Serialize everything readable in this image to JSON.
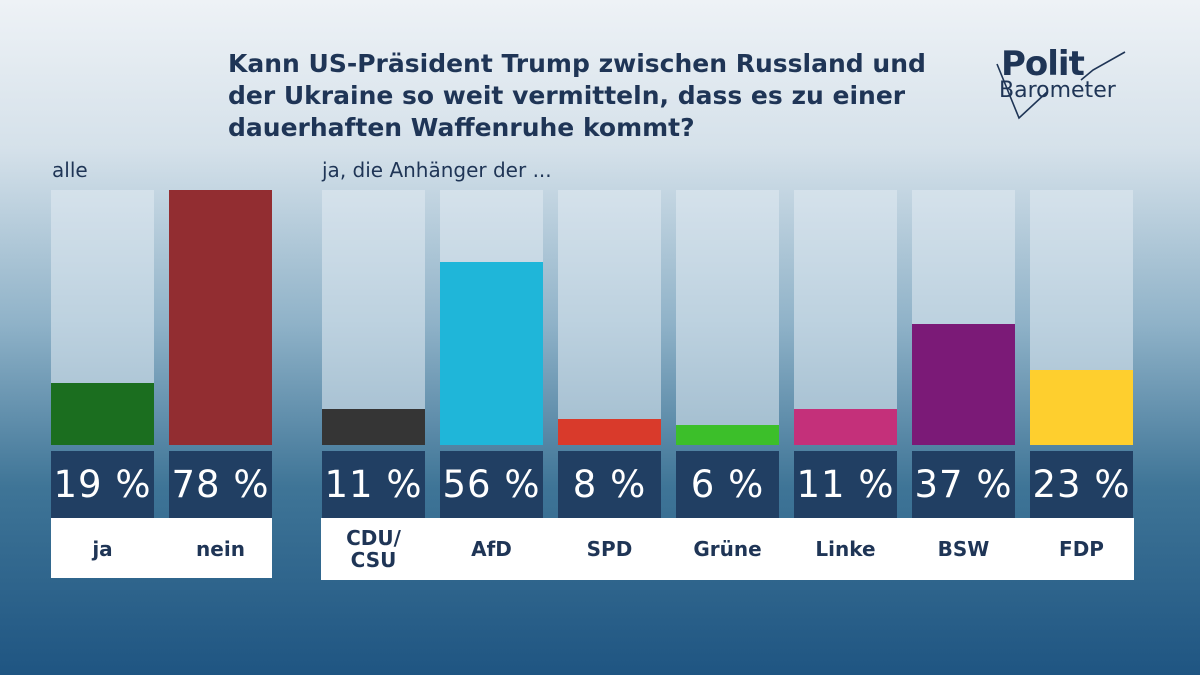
{
  "chart_data": {
    "type": "bar",
    "title": "Kann US-Präsident Trump zwischen Russland und der Ukraine so weit vermitteln, dass es zu einer dauerhaften Waffenruhe kommt?",
    "ylim": [
      0,
      78
    ],
    "groups": [
      {
        "label": "alle",
        "categories": [
          "ja",
          "nein"
        ],
        "values": [
          19,
          78
        ],
        "value_labels": [
          "19 %",
          "78 %"
        ],
        "colors": [
          "#1b6e1f",
          "#922d31"
        ]
      },
      {
        "label": "ja, die Anhänger der ...",
        "categories": [
          "CDU/\nCSU",
          "AfD",
          "SPD",
          "Grüne",
          "Linke",
          "BSW",
          "FDP"
        ],
        "values": [
          11,
          56,
          8,
          6,
          11,
          37,
          23
        ],
        "value_labels": [
          "11 %",
          "56 %",
          "8 %",
          "6 %",
          "11 %",
          "37 %",
          "23 %"
        ],
        "colors": [
          "#353535",
          "#1fb6d9",
          "#d93a2b",
          "#3cbf2a",
          "#c4307a",
          "#7b1a77",
          "#fecf2e"
        ]
      }
    ]
  },
  "logo": {
    "word1": "Polit",
    "word2": "Barometer"
  }
}
